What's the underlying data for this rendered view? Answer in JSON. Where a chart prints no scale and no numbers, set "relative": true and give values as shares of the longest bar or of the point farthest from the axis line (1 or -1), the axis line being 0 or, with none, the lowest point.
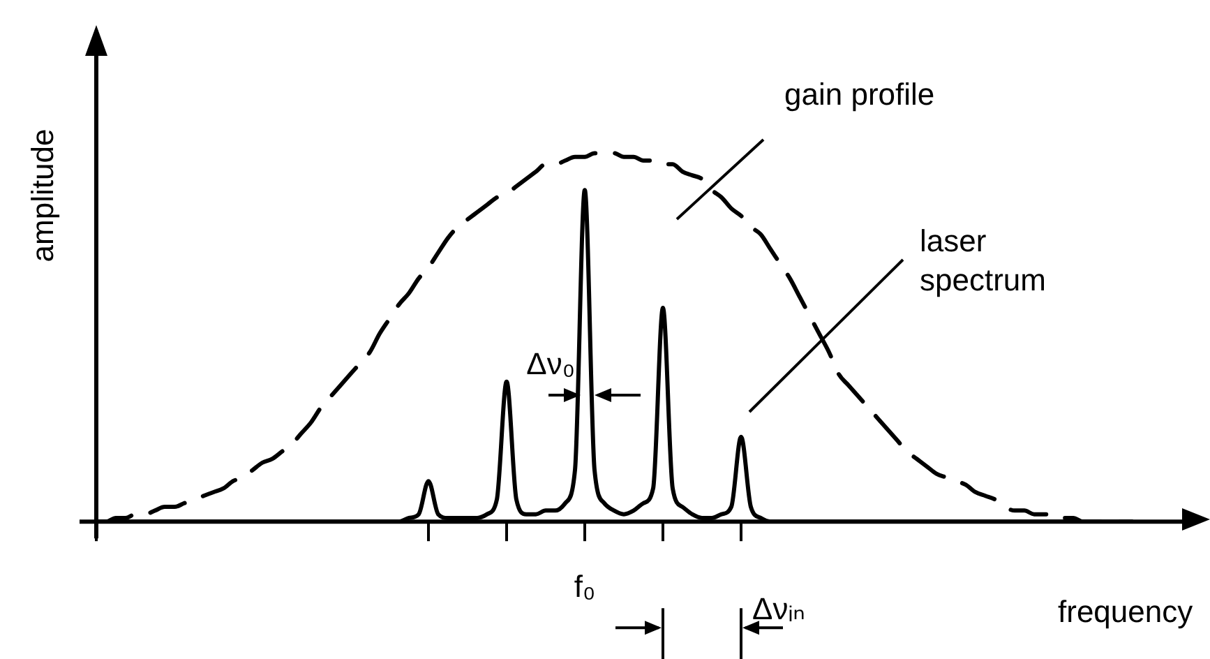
{
  "chart_data": {
    "type": "line",
    "relative": true,
    "xlabel": "frequency",
    "ylabel": "amplitude",
    "legend": false,
    "grid": false,
    "marker": "none",
    "categories": [
      null,
      null,
      null,
      null,
      null,
      null,
      null,
      null,
      null,
      null,
      null,
      null,
      null,
      null,
      null,
      null,
      null,
      null,
      null,
      null,
      null,
      null,
      null,
      null,
      null,
      null,
      null,
      null,
      null,
      null,
      null,
      null,
      null,
      null,
      null,
      null,
      null,
      null,
      null,
      null,
      null,
      null,
      null,
      null,
      null,
      null,
      null,
      null,
      null,
      null,
      null,
      null,
      null,
      null,
      null,
      null,
      null,
      null,
      null,
      null,
      null,
      null,
      null,
      null,
      null,
      null,
      null,
      null,
      null,
      null,
      null,
      null,
      null,
      null,
      null,
      null,
      null,
      null,
      null,
      null,
      null,
      null,
      null,
      null,
      null,
      null,
      null,
      null,
      null,
      null,
      null,
      null,
      null,
      null,
      null,
      null,
      null,
      null,
      null,
      null,
      null,
      null,
      null,
      null,
      null,
      null,
      null
    ],
    "series": [
      {
        "color": "#000000",
        "line_style": "dashed",
        "values": [
          0,
          0,
          0.01,
          0.01,
          0.02,
          0.02,
          0.03,
          0.04,
          0.04,
          0.05,
          0.06,
          0.07,
          0.08,
          0.09,
          0.11,
          0.12,
          0.14,
          0.16,
          0.17,
          0.19,
          0.21,
          0.24,
          0.27,
          0.31,
          0.34,
          0.37,
          0.4,
          0.43,
          0.46,
          0.51,
          0.55,
          0.59,
          0.62,
          0.66,
          0.69,
          0.73,
          0.77,
          0.8,
          0.82,
          0.84,
          0.86,
          0.88,
          0.89,
          0.91,
          0.93,
          0.95,
          0.97,
          0.97,
          0.98,
          0.99,
          0.99,
          1,
          1,
          1,
          0.99,
          0.99,
          0.98,
          0.98,
          0.97,
          0.97,
          0.95,
          0.94,
          0.93,
          0.9,
          0.88,
          0.85,
          0.83,
          0.8,
          0.78,
          0.74,
          0.7,
          0.66,
          0.61,
          0.56,
          0.51,
          0.46,
          0.4,
          0.37,
          0.34,
          0.31,
          0.28,
          0.25,
          0.22,
          0.19,
          0.17,
          0.15,
          0.13,
          0.12,
          0.11,
          0.1,
          0.08,
          0.07,
          0.06,
          0.04,
          0.03,
          0.03,
          0.02,
          0.02,
          0.02,
          0.01,
          0.01,
          0,
          0,
          0,
          0,
          0,
          0
        ]
      },
      {
        "color": "#000000",
        "line_style": "solid",
        "values": [
          0,
          0,
          0,
          0,
          0,
          0,
          0,
          0,
          0,
          0,
          0,
          0,
          0,
          0,
          0,
          0,
          0,
          0,
          0,
          0,
          0,
          0,
          0,
          0,
          0,
          0,
          0,
          0,
          0,
          0,
          0,
          0,
          0.01,
          0.02,
          0.11,
          0.02,
          0.01,
          0.01,
          0.01,
          0.01,
          0.02,
          0.06,
          0.38,
          0.06,
          0.02,
          0.02,
          0.03,
          0.03,
          0.05,
          0.14,
          0.9,
          0.14,
          0.05,
          0.03,
          0.02,
          0.03,
          0.05,
          0.09,
          0.58,
          0.09,
          0.04,
          0.02,
          0.01,
          0.01,
          0.02,
          0.04,
          0.23,
          0.04,
          0.01,
          0,
          0,
          0,
          0,
          0,
          0,
          0,
          0,
          0,
          0,
          0,
          0,
          0,
          0,
          0,
          0,
          0,
          0,
          0,
          0,
          0,
          0,
          0,
          0,
          0,
          0,
          0,
          0,
          0,
          0,
          0,
          0,
          0,
          0,
          0,
          0,
          0,
          0
        ]
      }
    ],
    "annotations": [
      "gain profile",
      "laser spectrum",
      "Δν₀",
      "Δνᵢₙ",
      "f₀"
    ]
  }
}
